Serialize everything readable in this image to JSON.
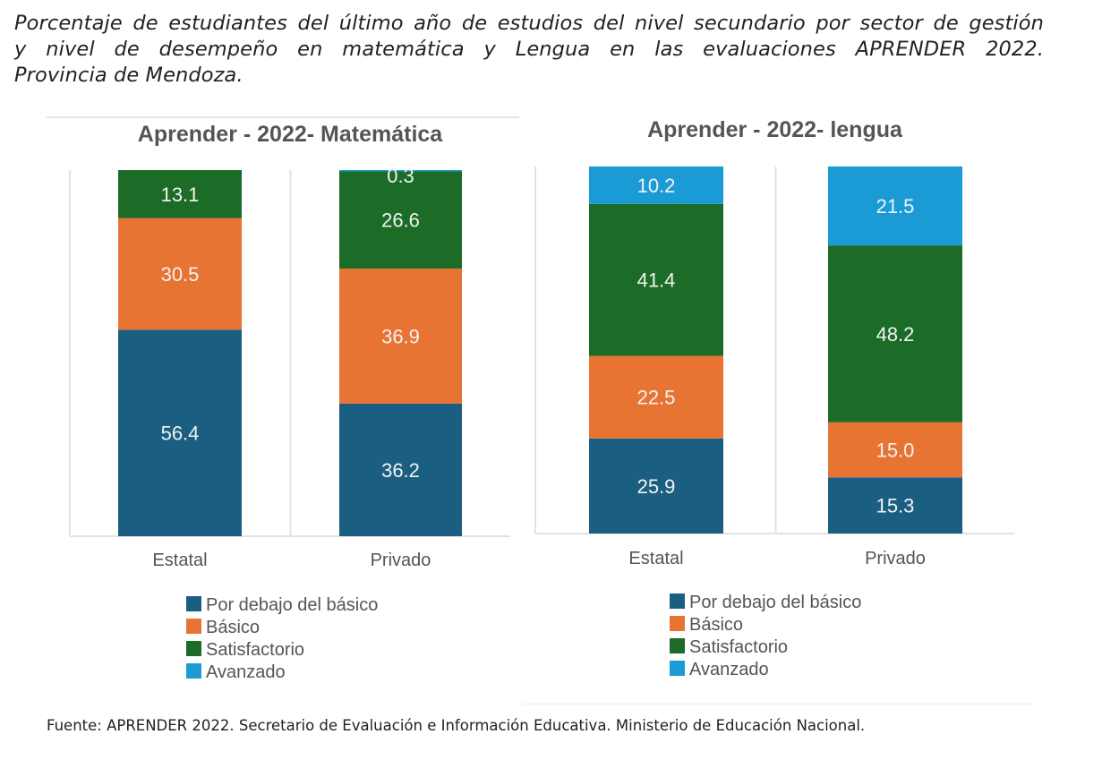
{
  "caption": {
    "line1": "Porcentaje de estudiantes del último año de estudios del nivel secundario por sector de gestión",
    "line2": "y nivel de desempeño en matemática y Lengua en las evaluaciones APRENDER 2022.",
    "line3": "Provincia de Mendoza."
  },
  "source": "Fuente: APRENDER 2022. Secretario de Evaluación e Información Educativa. Ministerio de Educación Nacional.",
  "colors": {
    "Por debajo del básico": "#1a5e82",
    "Básico": "#e87434",
    "Satisfactorio": "#1c6b26",
    "Avanzado": "#1a9bd6"
  },
  "chart_data": [
    {
      "type": "bar",
      "stacked": true,
      "title": "Aprender - 2022- Matemática",
      "categories": [
        "Estatal",
        "Privado"
      ],
      "xlabel": "",
      "ylabel": "",
      "ylim": [
        0,
        100
      ],
      "grid": true,
      "legend_position": "bottom",
      "series": [
        {
          "name": "Por debajo del básico",
          "values": [
            56.4,
            36.2
          ],
          "labels": [
            "56.4",
            "36.2"
          ]
        },
        {
          "name": "Básico",
          "values": [
            30.5,
            36.9
          ],
          "labels": [
            "30.5",
            "36.9"
          ]
        },
        {
          "name": "Satisfactorio",
          "values": [
            13.1,
            26.6
          ],
          "labels": [
            "13.1",
            "26.6"
          ]
        },
        {
          "name": "Avanzado",
          "values": [
            0,
            0.3
          ],
          "labels": [
            "",
            "0.3"
          ]
        }
      ]
    },
    {
      "type": "bar",
      "stacked": true,
      "title": "Aprender - 2022- lengua",
      "categories": [
        "Estatal",
        "Privado"
      ],
      "xlabel": "",
      "ylabel": "",
      "ylim": [
        0,
        100
      ],
      "grid": true,
      "legend_position": "bottom",
      "series": [
        {
          "name": "Por debajo del básico",
          "values": [
            25.9,
            15.3
          ],
          "labels": [
            "25.9",
            "15.3"
          ]
        },
        {
          "name": "Básico",
          "values": [
            22.5,
            15.0
          ],
          "labels": [
            "22.5",
            "15.0"
          ]
        },
        {
          "name": "Satisfactorio",
          "values": [
            41.4,
            48.2
          ],
          "labels": [
            "41.4",
            "48.2"
          ]
        },
        {
          "name": "Avanzado",
          "values": [
            10.2,
            21.5
          ],
          "labels": [
            "10.2",
            "21.5"
          ]
        }
      ]
    }
  ]
}
